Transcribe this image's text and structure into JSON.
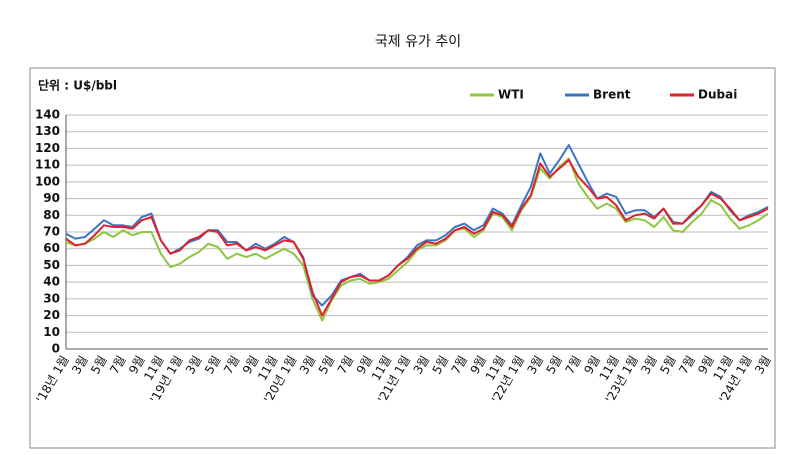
{
  "chart_data": {
    "type": "line",
    "title": "국제 유가 추이",
    "unit_label": "단위 : U$/bbl",
    "categories": [
      "'18년 1월",
      null,
      "3월",
      null,
      "5월",
      null,
      "7월",
      null,
      "9월",
      null,
      "11월",
      null,
      "'19년 1월",
      null,
      "3월",
      null,
      "5월",
      null,
      "7월",
      null,
      "9월",
      null,
      "11월",
      null,
      "'20년 1월",
      null,
      "3월",
      null,
      "5월",
      null,
      "7월",
      null,
      "9월",
      null,
      "11월",
      null,
      "'21년 1월",
      null,
      "3월",
      null,
      "5월",
      null,
      "7월",
      null,
      "9월",
      null,
      "11월",
      null,
      "'22년 1월",
      null,
      "3월",
      null,
      "5월",
      null,
      "7월",
      null,
      "9월",
      null,
      "11월",
      null,
      "'23년 1월",
      null,
      "3월",
      null,
      "5월",
      null,
      "7월",
      null,
      "9월",
      null,
      "11월",
      null,
      "'24년 1월",
      null,
      "3월"
    ],
    "series": [
      {
        "name": "WTI",
        "color": "#8dc63f",
        "values": [
          64,
          62,
          63,
          66,
          70,
          67,
          71,
          68,
          70,
          70,
          57,
          49,
          51,
          55,
          58,
          63,
          61,
          54,
          57,
          55,
          57,
          54,
          57,
          60,
          57,
          50,
          30,
          17,
          29,
          38,
          41,
          42,
          39,
          40,
          42,
          47,
          52,
          59,
          62,
          62,
          65,
          71,
          72,
          67,
          71,
          81,
          79,
          71,
          83,
          91,
          108,
          102,
          109,
          114,
          99,
          91,
          84,
          87,
          84,
          76,
          78,
          77,
          73,
          79,
          71,
          70,
          76,
          81,
          89,
          86,
          78,
          72,
          74,
          77,
          81
        ]
      },
      {
        "name": "Brent",
        "color": "#3a75c4",
        "values": [
          69,
          66,
          67,
          72,
          77,
          74,
          74,
          73,
          79,
          81,
          65,
          57,
          60,
          64,
          66,
          71,
          71,
          64,
          64,
          59,
          63,
          60,
          63,
          67,
          64,
          55,
          32,
          26,
          32,
          41,
          43,
          45,
          41,
          41,
          44,
          50,
          55,
          62,
          65,
          65,
          68,
          73,
          75,
          71,
          74,
          84,
          81,
          74,
          86,
          97,
          117,
          105,
          113,
          122,
          111,
          100,
          90,
          93,
          91,
          81,
          83,
          83,
          79,
          84,
          76,
          75,
          80,
          86,
          94,
          91,
          83,
          77,
          80,
          82,
          85
        ]
      },
      {
        "name": "Dubai",
        "color": "#e0202a",
        "values": [
          66,
          62,
          63,
          68,
          74,
          73,
          73,
          72,
          77,
          79,
          65,
          57,
          59,
          65,
          67,
          71,
          70,
          62,
          63,
          59,
          61,
          59,
          62,
          65,
          64,
          54,
          34,
          20,
          30,
          40,
          43,
          44,
          41,
          41,
          44,
          50,
          54,
          60,
          64,
          63,
          66,
          71,
          73,
          69,
          72,
          82,
          80,
          73,
          84,
          92,
          111,
          103,
          108,
          113,
          103,
          97,
          90,
          91,
          86,
          77,
          80,
          81,
          78,
          84,
          75,
          75,
          81,
          86,
          93,
          90,
          84,
          77,
          79,
          81,
          84
        ]
      }
    ],
    "ylim": [
      0,
      140
    ],
    "yticks": [
      0,
      10,
      20,
      30,
      40,
      50,
      60,
      70,
      80,
      90,
      100,
      110,
      120,
      130,
      140
    ],
    "grid": true,
    "legend": "top-right"
  }
}
